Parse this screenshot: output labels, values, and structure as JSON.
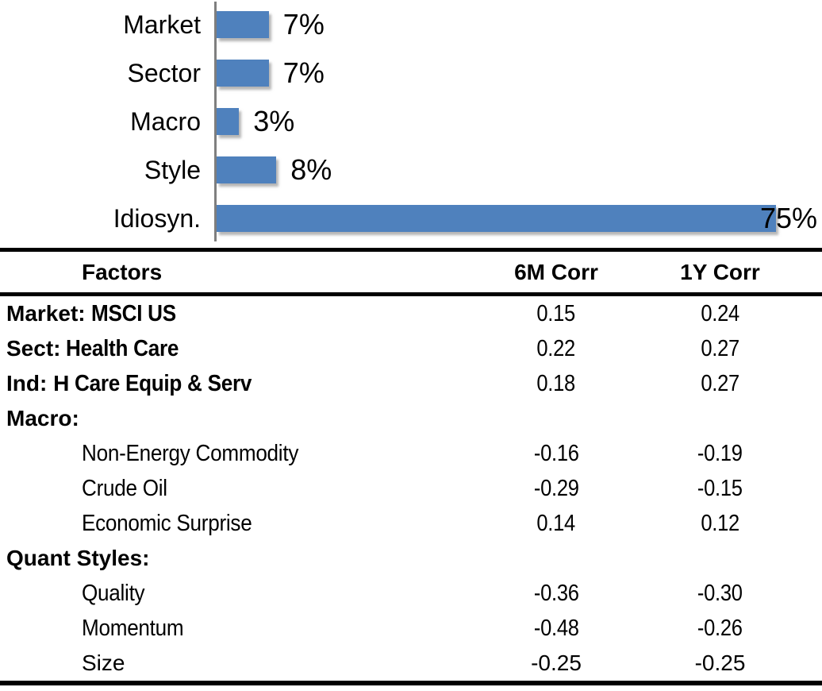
{
  "chart_data": [
    {
      "type": "bar",
      "orientation": "horizontal",
      "title": "",
      "xlabel": "",
      "ylabel": "",
      "categories": [
        "Market",
        "Sector",
        "Macro",
        "Style",
        "Idiosyn."
      ],
      "values": [
        7,
        7,
        3,
        8,
        75
      ],
      "value_labels": [
        "7%",
        "7%",
        "3%",
        "8%",
        "75%"
      ],
      "unit": "percent",
      "xlim": [
        0,
        80
      ],
      "grid": false,
      "legend": false,
      "bar_color": "#4F81BD",
      "axis_color": "#7F7F7F",
      "label_color": "#000000"
    },
    {
      "type": "table",
      "columns": [
        "Factors",
        "6M Corr",
        "1Y Corr"
      ],
      "rows": [
        {
          "prefix": "Market:",
          "label": "MSCI US",
          "corr_6m": "0.15",
          "corr_1y": "0.24"
        },
        {
          "prefix": "Sect:",
          "label": "Health Care",
          "corr_6m": "0.22",
          "corr_1y": "0.27"
        },
        {
          "prefix": "Ind: H",
          "label": "Care Equip & Serv",
          "corr_6m": "0.18",
          "corr_1y": "0.27"
        },
        {
          "prefix": "Macro:",
          "label": "",
          "corr_6m": "",
          "corr_1y": ""
        },
        {
          "prefix": "",
          "label": "Non-Energy Commodity",
          "corr_6m": "-0.16",
          "corr_1y": "-0.19"
        },
        {
          "prefix": "",
          "label": "Crude Oil",
          "corr_6m": "-0.29",
          "corr_1y": "-0.15"
        },
        {
          "prefix": "",
          "label": "Economic Surprise",
          "corr_6m": "0.14",
          "corr_1y": "0.12"
        },
        {
          "prefix": "Quant Styles:",
          "label": "",
          "corr_6m": "",
          "corr_1y": ""
        },
        {
          "prefix": "",
          "label": "Quality",
          "corr_6m": "-0.36",
          "corr_1y": "-0.30"
        },
        {
          "prefix": "",
          "label": "Momentum",
          "corr_6m": "-0.48",
          "corr_1y": "-0.26"
        },
        {
          "prefix": "",
          "label": "Size",
          "corr_6m": "-0.25",
          "corr_1y": "-0.25"
        }
      ]
    }
  ]
}
